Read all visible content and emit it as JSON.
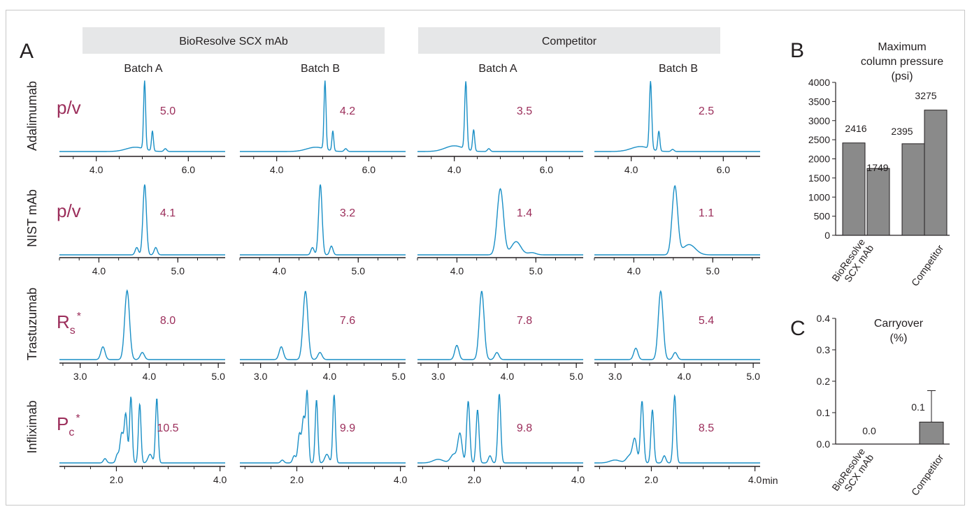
{
  "colors": {
    "trace": "#1a8fc6",
    "metric": "#9b2d5a",
    "bar": "#8a8a8a",
    "header_bg": "#e6e7e8",
    "text": "#231f20"
  },
  "panel_a": {
    "label": "A",
    "group_headers": [
      "BioResolve SCX mAb",
      "Competitor"
    ],
    "column_headers": [
      "Batch A",
      "Batch B",
      "Batch A",
      "Batch B"
    ],
    "rows": [
      {
        "sample": "Adalimumab",
        "metric": "p/v",
        "metric_sub": "",
        "metric_sup": "",
        "values": [
          "5.0",
          "4.2",
          "3.5",
          "2.5"
        ],
        "ticks": [
          "4.0",
          "6.0"
        ]
      },
      {
        "sample": "NIST mAb",
        "metric": "p/v",
        "metric_sub": "",
        "metric_sup": "",
        "values": [
          "4.1",
          "3.2",
          "1.4",
          "1.1"
        ],
        "ticks": [
          "4.0",
          "5.0"
        ]
      },
      {
        "sample": "Trastuzumab",
        "metric": "R",
        "metric_sub": "s",
        "metric_sup": "*",
        "values": [
          "8.0",
          "7.6",
          "7.8",
          "5.4"
        ],
        "ticks": [
          "3.0",
          "4.0",
          "5.0"
        ]
      },
      {
        "sample": "Infliximab",
        "metric": "P",
        "metric_sub": "c",
        "metric_sup": "*",
        "values": [
          "10.5",
          "9.9",
          "9.8",
          "8.5"
        ],
        "ticks": [
          "2.0",
          "4.0"
        ]
      }
    ],
    "time_unit": "min"
  },
  "chart_data": [
    {
      "panel": "B",
      "type": "bar",
      "title": "Maximum column pressure (psi)",
      "title_lines": [
        "Maximum",
        "column pressure",
        "(psi)"
      ],
      "groups": [
        "BioResolve SCX mAb",
        "Competitor"
      ],
      "group_label_lines": [
        [
          "BioResolve",
          "SCX mAb"
        ],
        [
          "Competitor"
        ]
      ],
      "series": [
        {
          "values": [
            2416,
            1749,
            2395,
            3275
          ]
        }
      ],
      "data_labels": [
        "2416",
        "1749",
        "2395",
        "3275"
      ],
      "ylim": [
        0,
        4000
      ],
      "yticks": [
        "0",
        "500",
        "1000",
        "1500",
        "2000",
        "2500",
        "3000",
        "3500",
        "4000"
      ]
    },
    {
      "panel": "C",
      "type": "bar",
      "title": "Carryover (%)",
      "title_lines": [
        "Carryover",
        "(%)"
      ],
      "categories": [
        "BioResolve SCX mAb",
        "Competitor"
      ],
      "category_label_lines": [
        [
          "BioResolve",
          "SCX mAb"
        ],
        [
          "Competitor"
        ]
      ],
      "values": [
        0.0,
        0.07
      ],
      "error_upper": [
        0.0,
        0.17
      ],
      "data_labels": [
        "0.0",
        "0.1"
      ],
      "ylim": [
        0,
        0.4
      ],
      "yticks": [
        "0.0",
        "0.1",
        "0.2",
        "0.3",
        "0.4"
      ]
    }
  ]
}
